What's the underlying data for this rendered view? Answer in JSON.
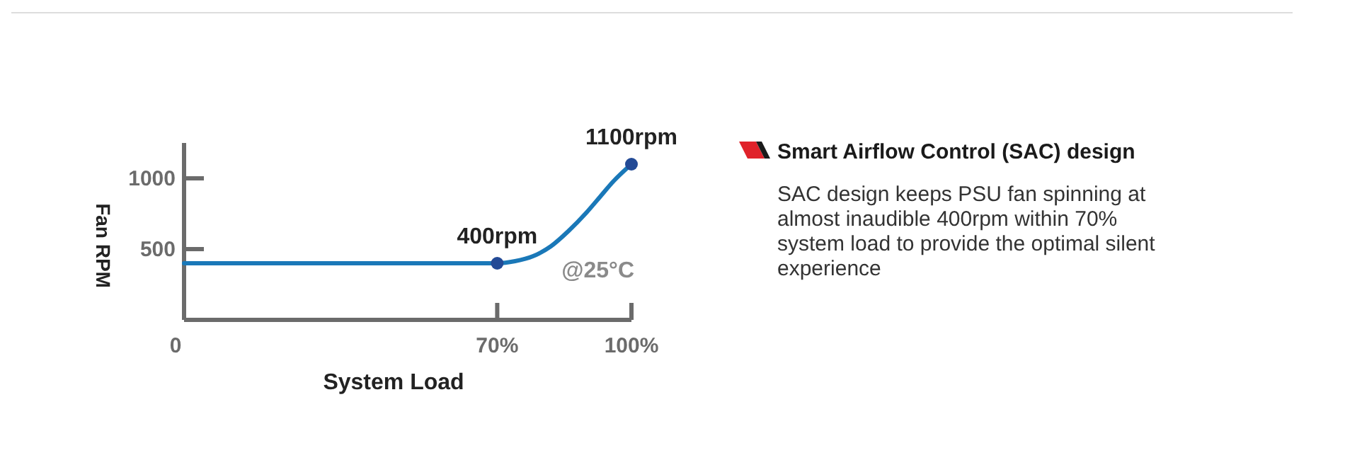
{
  "chart_data": [
    {
      "type": "line",
      "xlabel": "System Load",
      "ylabel": "Fan RPM",
      "xlim": [
        0,
        100
      ],
      "ylim": [
        0,
        1250
      ],
      "xticks": [
        {
          "value": 0,
          "label": "0"
        },
        {
          "value": 70,
          "label": "70%"
        },
        {
          "value": 100,
          "label": "100%"
        }
      ],
      "yticks": [
        500,
        1000
      ],
      "grid": false,
      "series": [
        {
          "type": "line",
          "color": "#1a78b8",
          "marker": "none",
          "x": [
            0,
            70,
            74,
            78,
            82,
            86,
            90,
            93,
            96,
            100
          ],
          "values": [
            400,
            400,
            415,
            450,
            520,
            630,
            760,
            870,
            980,
            1100
          ]
        },
        {
          "type": "scatter",
          "color": "#234a96",
          "marker": "circle",
          "x": [
            70,
            100
          ],
          "values": [
            400,
            1100
          ],
          "value_labels": [
            "400rpm",
            "1100rpm"
          ]
        }
      ],
      "annotations": [
        "@25°C"
      ]
    },
    {
      "type": "other",
      "title": "Smart Airflow Control (SAC) design",
      "annotations": [
        "SAC design keeps PSU fan spinning at",
        "almost inaudible 400rpm within 70%",
        "system load to provide the optimal silent",
        "experience"
      ]
    }
  ]
}
